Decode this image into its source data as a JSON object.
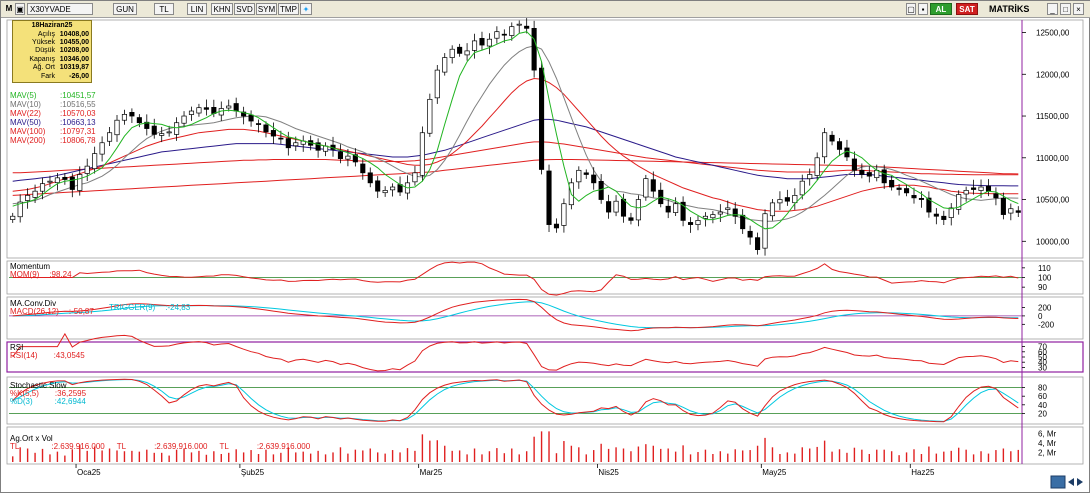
{
  "toolbar": {
    "m_label": "M",
    "symbol": "X30YVADE",
    "period": "GUN",
    "currency": "TL",
    "scale": "LIN",
    "b1": "KHN",
    "b2": "SVD",
    "b3": "SYM",
    "b4": "TMP",
    "buy_label": "AL",
    "sell_label": "SAT",
    "brand": "MATRİKS"
  },
  "info": {
    "date": "18Haziran25",
    "rows": [
      {
        "label": "Açılış",
        "value": "10408,00"
      },
      {
        "label": "Yüksek",
        "value": "10455,00"
      },
      {
        "label": "Düşük",
        "value": "10208,00"
      },
      {
        "label": "Kapanış",
        "value": "10346,00"
      },
      {
        "label": "Ağ. Ort",
        "value": "10319,87"
      },
      {
        "label": "Fark",
        "value": "-26,00"
      }
    ]
  },
  "legend": {
    "mav5": "MAV(5)",
    "mav5_val": ":10451,57",
    "mav10": "MAV(10)",
    "mav10_val": ":10516,55",
    "mav22": "MAV(22)",
    "mav22_val": ":10570,03",
    "mav50": "MAV(50)",
    "mav50_val": ":10663,13",
    "mav100": "MAV(100)",
    "mav100_val": ":10797,31",
    "mav200": "MAV(200)",
    "mav200_val": ":10806,78"
  },
  "panels": {
    "momentum_title": "Momentum",
    "mom_label": "MOM(9)",
    "mom_val": ":98,24",
    "macd_title": "MA.Conv.Div",
    "macd_label": "MACD(26,12)",
    "macd_val": ":-50,87",
    "trigger_label": "TRIGGER(9)",
    "trigger_val": ":-24,83",
    "rsi_title": "RSI",
    "rsi_label": "RSI(14)",
    "rsi_val": ":43,0545",
    "stoch_title": "Stochastic Slow",
    "k_label": "%K(5,5)",
    "k_val": ":36,2595",
    "d_label": "%D(3)",
    "d_val": ":42,6944",
    "vol_title": "Ag.Ort x Vol",
    "vol_tl1": "TL",
    "vol_v1": ":2.639.916.000",
    "vol_tl2": "TL",
    "vol_v2": ":2.639.916.000",
    "vol_tl3": "TL",
    "vol_v3": ":2.639.916.000"
  },
  "colors": {
    "up": "#ffffff",
    "down": "#000000",
    "mav5": "#22b522",
    "mav10": "#808080",
    "mav22": "#e02020",
    "mav50": "#2a1a8a",
    "mav100": "#e02020",
    "mav200": "#e02020",
    "cyan": "#00c8e0",
    "red": "#e02020",
    "purple": "#9020a0",
    "greenline": "#208020"
  },
  "chart_data": {
    "type": "candlestick",
    "price_ticks": [
      "12500,00",
      "12000,00",
      "11500,00",
      "11000,00",
      "10500,00",
      "10000,00"
    ],
    "price_range": [
      9800,
      12650
    ],
    "month_labels": [
      "Oca25",
      "Şub25",
      "Mar25",
      "Nis25",
      "May25",
      "Haz25"
    ],
    "close": [
      10300,
      10470,
      10550,
      10600,
      10690,
      10720,
      10760,
      10740,
      10620,
      10800,
      10900,
      11050,
      11180,
      11300,
      11450,
      11520,
      11500,
      11420,
      11350,
      11280,
      11290,
      11310,
      11420,
      11500,
      11560,
      11600,
      11580,
      11530,
      11590,
      11620,
      11560,
      11500,
      11440,
      11400,
      11310,
      11260,
      11230,
      11120,
      11180,
      11200,
      11150,
      11090,
      11140,
      11100,
      10990,
      11020,
      10950,
      10820,
      10700,
      10600,
      10610,
      10650,
      10590,
      10700,
      10820,
      11300,
      11700,
      12050,
      12200,
      12300,
      12250,
      12280,
      12400,
      12350,
      12420,
      12510,
      12470,
      12570,
      12600,
      12550,
      12050,
      10860,
      10200,
      10160,
      10450,
      10700,
      10850,
      10800,
      10700,
      10500,
      10350,
      10480,
      10300,
      10250,
      10500,
      10750,
      10600,
      10450,
      10350,
      10450,
      10250,
      10200,
      10250,
      10300,
      10320,
      10350,
      10400,
      10300,
      10150,
      10050,
      9900,
      10330,
      10460,
      10500,
      10480,
      10550,
      10720,
      10800,
      11000,
      11300,
      11200,
      11100,
      11010,
      10850,
      10800,
      10780,
      10850,
      10700,
      10650,
      10620,
      10580,
      10520,
      10500,
      10350,
      10300,
      10260,
      10400,
      10560,
      10610,
      10620,
      10650,
      10600,
      10520,
      10320,
      10390,
      10346
    ],
    "mav5": [
      10420,
      10450,
      10470,
      10500,
      10560,
      10630,
      10690,
      10720,
      10730,
      10750,
      10780,
      10830,
      10880,
      10990,
      11120,
      11260,
      11360,
      11400,
      11420,
      11410,
      11400,
      11370,
      11360,
      11370,
      11400,
      11440,
      11480,
      11530,
      11560,
      11570,
      11560,
      11540,
      11520,
      11480,
      11420,
      11360,
      11300,
      11250,
      11230,
      11200,
      11180,
      11160,
      11140,
      11120,
      11090,
      11060,
      11030,
      10990,
      10940,
      10880,
      10800,
      10740,
      10680,
      10640,
      10650,
      10720,
      10860,
      11090,
      11400,
      11700,
      11980,
      12150,
      12260,
      12290,
      12320,
      12360,
      12400,
      12420,
      12490,
      12510,
      12420,
      12150,
      11700,
      11280,
      10900,
      10560,
      10480,
      10550,
      10600,
      10620,
      10650,
      10600,
      10500,
      10420,
      10400,
      10420,
      10480,
      10530,
      10510,
      10480,
      10430,
      10360,
      10310,
      10260,
      10260,
      10280,
      10310,
      10320,
      10310,
      10260,
      10200,
      10150,
      10160,
      10230,
      10330,
      10450,
      10540,
      10620,
      10730,
      10850,
      10960,
      11030,
      11080,
      11050,
      11000,
      10920,
      10850,
      10810,
      10790,
      10730,
      10680,
      10620,
      10570,
      10500,
      10450,
      10400,
      10390,
      10410,
      10460,
      10510,
      10560,
      10600,
      10590,
      10540,
      10490,
      10451
    ],
    "mav10": [
      10450,
      10460,
      10470,
      10490,
      10520,
      10560,
      10590,
      10620,
      10650,
      10680,
      10700,
      10740,
      10780,
      10840,
      10910,
      11000,
      11080,
      11160,
      11230,
      11280,
      11320,
      11350,
      11370,
      11380,
      11390,
      11400,
      11410,
      11420,
      11440,
      11460,
      11480,
      11490,
      11500,
      11500,
      11490,
      11460,
      11430,
      11390,
      11350,
      11320,
      11290,
      11260,
      11230,
      11200,
      11170,
      11130,
      11100,
      11070,
      11030,
      10990,
      10950,
      10900,
      10850,
      10810,
      10780,
      10770,
      10790,
      10860,
      10970,
      11110,
      11270,
      11440,
      11600,
      11740,
      11880,
      12000,
      12110,
      12200,
      12270,
      12320,
      12340,
      12300,
      12150,
      11950,
      11720,
      11480,
      11250,
      11030,
      10850,
      10720,
      10650,
      10600,
      10590,
      10570,
      10560,
      10540,
      10520,
      10510,
      10490,
      10460,
      10440,
      10420,
      10400,
      10390,
      10380,
      10360,
      10330,
      10300,
      10280,
      10260,
      10250,
      10240,
      10240,
      10250,
      10270,
      10300,
      10350,
      10410,
      10480,
      10550,
      10630,
      10710,
      10790,
      10850,
      10890,
      10900,
      10890,
      10880,
      10860,
      10830,
      10790,
      10760,
      10720,
      10680,
      10640,
      10600,
      10560,
      10530,
      10510,
      10500,
      10490,
      10500,
      10510,
      10520,
      10518,
      10517
    ],
    "mav22": [
      10600,
      10610,
      10620,
      10640,
      10660,
      10690,
      10720,
      10750,
      10780,
      10810,
      10840,
      10870,
      10900,
      10940,
      10980,
      11020,
      11060,
      11100,
      11140,
      11170,
      11200,
      11220,
      11240,
      11260,
      11280,
      11300,
      11310,
      11320,
      11330,
      11340,
      11340,
      11340,
      11330,
      11320,
      11300,
      11280,
      11260,
      11240,
      11220,
      11200,
      11180,
      11160,
      11140,
      11120,
      11100,
      11080,
      11060,
      11040,
      11020,
      11000,
      10980,
      10960,
      10940,
      10920,
      10910,
      10910,
      10920,
      10950,
      10990,
      11050,
      11120,
      11200,
      11290,
      11380,
      11480,
      11580,
      11680,
      11780,
      11860,
      11920,
      11950,
      11940,
      11900,
      11840,
      11760,
      11660,
      11560,
      11460,
      11360,
      11260,
      11170,
      11090,
      11020,
      10960,
      10900,
      10850,
      10800,
      10760,
      10720,
      10680,
      10640,
      10610,
      10580,
      10550,
      10520,
      10500,
      10470,
      10440,
      10420,
      10400,
      10380,
      10370,
      10360,
      10360,
      10360,
      10370,
      10380,
      10400,
      10420,
      10450,
      10480,
      10510,
      10540,
      10570,
      10600,
      10620,
      10640,
      10650,
      10660,
      10670,
      10670,
      10670,
      10660,
      10650,
      10630,
      10620,
      10600,
      10590,
      10580,
      10575,
      10572,
      10571,
      10570,
      10570,
      10570,
      10570
    ],
    "mav50": [
      10720,
      10730,
      10740,
      10750,
      10760,
      10770,
      10790,
      10810,
      10830,
      10850,
      10870,
      10890,
      10910,
      10930,
      10950,
      10970,
      10990,
      11010,
      11030,
      11050,
      11070,
      11080,
      11090,
      11100,
      11110,
      11120,
      11130,
      11140,
      11150,
      11160,
      11170,
      11170,
      11170,
      11170,
      11170,
      11170,
      11160,
      11150,
      11140,
      11130,
      11120,
      11110,
      11100,
      11090,
      11080,
      11070,
      11060,
      11050,
      11040,
      11030,
      11020,
      11010,
      11010,
      11010,
      11020,
      11030,
      11050,
      11070,
      11090,
      11120,
      11150,
      11180,
      11210,
      11240,
      11270,
      11300,
      11330,
      11360,
      11390,
      11420,
      11450,
      11460,
      11460,
      11450,
      11430,
      11410,
      11390,
      11370,
      11340,
      11310,
      11280,
      11250,
      11220,
      11190,
      11160,
      11130,
      11100,
      11070,
      11040,
      11010,
      10990,
      10970,
      10950,
      10930,
      10910,
      10890,
      10870,
      10850,
      10830,
      10810,
      10790,
      10780,
      10770,
      10760,
      10750,
      10750,
      10750,
      10750,
      10760,
      10770,
      10780,
      10790,
      10800,
      10800,
      10800,
      10800,
      10790,
      10780,
      10770,
      10760,
      10750,
      10740,
      10730,
      10720,
      10710,
      10700,
      10690,
      10680,
      10675,
      10670,
      10668,
      10666,
      10665,
      10664,
      10663,
      10663
    ],
    "mav100": [
      10820,
      10820,
      10825,
      10830,
      10835,
      10840,
      10845,
      10850,
      10855,
      10860,
      10865,
      10870,
      10875,
      10880,
      10885,
      10890,
      10895,
      10900,
      10905,
      10910,
      10915,
      10920,
      10925,
      10930,
      10935,
      10940,
      10945,
      10950,
      10955,
      10960,
      10965,
      10970,
      10970,
      10975,
      10975,
      10980,
      10980,
      10980,
      10980,
      10980,
      10980,
      10980,
      10980,
      10975,
      10970,
      10970,
      10965,
      10960,
      10960,
      10960,
      10955,
      10955,
      10955,
      10960,
      10965,
      10975,
      10985,
      11000,
      11015,
      11030,
      11045,
      11060,
      11075,
      11090,
      11105,
      11120,
      11135,
      11150,
      11165,
      11180,
      11190,
      11190,
      11185,
      11175,
      11165,
      11150,
      11135,
      11120,
      11105,
      11090,
      11075,
      11060,
      11045,
      11030,
      11015,
      11000,
      10990,
      10980,
      10970,
      10960,
      10950,
      10940,
      10930,
      10920,
      10910,
      10900,
      10890,
      10880,
      10870,
      10860,
      10850,
      10845,
      10840,
      10835,
      10830,
      10830,
      10830,
      10830,
      10830,
      10835,
      10840,
      10845,
      10850,
      10850,
      10850,
      10845,
      10840,
      10835,
      10830,
      10825,
      10820,
      10815,
      10810,
      10808,
      10806,
      10804,
      10802,
      10800,
      10799,
      10798,
      10797,
      10797,
      10797,
      10797,
      10797,
      10797
    ],
    "mav200": [
      10550,
      10555,
      10560,
      10565,
      10570,
      10575,
      10580,
      10585,
      10590,
      10595,
      10600,
      10605,
      10610,
      10615,
      10620,
      10625,
      10630,
      10635,
      10640,
      10645,
      10650,
      10655,
      10660,
      10665,
      10670,
      10675,
      10680,
      10685,
      10690,
      10695,
      10700,
      10705,
      10710,
      10715,
      10720,
      10725,
      10730,
      10735,
      10740,
      10745,
      10750,
      10755,
      10760,
      10765,
      10770,
      10775,
      10780,
      10785,
      10790,
      10795,
      10800,
      10805,
      10810,
      10815,
      10820,
      10825,
      10830,
      10840,
      10850,
      10860,
      10870,
      10880,
      10890,
      10900,
      10910,
      10920,
      10930,
      10940,
      10950,
      10960,
      10970,
      10975,
      10978,
      10980,
      10980,
      10980,
      10978,
      10976,
      10974,
      10972,
      10970,
      10968,
      10966,
      10964,
      10962,
      10960,
      10958,
      10956,
      10954,
      10952,
      10950,
      10948,
      10946,
      10944,
      10942,
      10940,
      10938,
      10936,
      10934,
      10932,
      10930,
      10928,
      10926,
      10924,
      10922,
      10920,
      10918,
      10916,
      10914,
      10912,
      10910,
      10908,
      10906,
      10904,
      10902,
      10900,
      10895,
      10890,
      10885,
      10880,
      10875,
      10870,
      10865,
      10860,
      10855,
      10850,
      10845,
      10840,
      10835,
      10830,
      10825,
      10820,
      10815,
      10810,
      10808,
      10807
    ],
    "volume_axis": [
      "6, Mr",
      "4, Mr",
      "2, Mr"
    ],
    "momentum_axis": [
      "110",
      "100",
      "90"
    ],
    "macd_axis": [
      "200",
      "0",
      "-200"
    ],
    "rsi_axis": [
      "70",
      "60",
      "50",
      "40",
      "30"
    ],
    "stoch_axis": [
      "80",
      "60",
      "40",
      "20"
    ]
  }
}
